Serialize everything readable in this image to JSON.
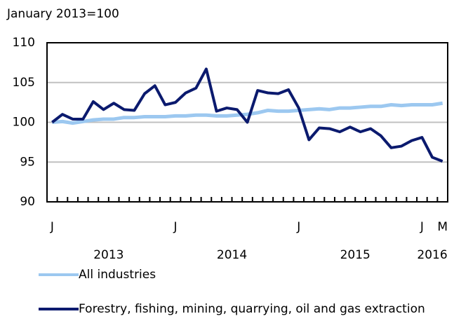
{
  "chart_data": {
    "type": "line",
    "y_label": "January 2013=100",
    "categories": [
      "J",
      null,
      null,
      null,
      null,
      null,
      null,
      null,
      null,
      null,
      null,
      null,
      "J",
      null,
      null,
      null,
      null,
      null,
      null,
      null,
      null,
      null,
      null,
      null,
      "J",
      null,
      null,
      null,
      null,
      null,
      null,
      null,
      null,
      null,
      null,
      null,
      "J",
      null,
      "M"
    ],
    "year_labels": [
      "2013",
      null,
      null,
      null,
      null,
      null,
      null,
      null,
      null,
      null,
      null,
      null,
      "2014",
      null,
      null,
      null,
      null,
      null,
      null,
      null,
      null,
      null,
      null,
      null,
      "2015",
      null,
      null,
      null,
      null,
      null,
      null,
      null,
      null,
      null,
      null,
      null,
      "2016",
      null,
      null
    ],
    "series": [
      {
        "name": "All industries",
        "color": "#9cc8f0",
        "values": [
          100,
          100.1,
          99.9,
          100.1,
          100.3,
          100.4,
          100.4,
          100.6,
          100.6,
          100.7,
          100.7,
          100.7,
          100.8,
          100.8,
          100.9,
          100.9,
          100.8,
          100.8,
          100.9,
          101.0,
          101.2,
          101.5,
          101.4,
          101.4,
          101.5,
          101.6,
          101.7,
          101.6,
          101.8,
          101.8,
          101.9,
          102.0,
          102.0,
          102.2,
          102.1,
          102.2,
          102.2,
          102.2,
          102.4
        ]
      },
      {
        "name": "Forestry, fishing, mining, quarrying, oil and gas extraction",
        "color": "#0b1a6e",
        "values": [
          100,
          101.0,
          100.4,
          100.4,
          102.6,
          101.6,
          102.4,
          101.6,
          101.5,
          103.6,
          104.6,
          102.2,
          102.5,
          103.7,
          104.3,
          106.7,
          101.4,
          101.8,
          101.6,
          100.0,
          104.0,
          103.7,
          103.6,
          104.1,
          101.8,
          97.8,
          99.3,
          99.2,
          98.8,
          99.4,
          98.8,
          99.2,
          98.3,
          96.8,
          97.0,
          97.7,
          98.1,
          95.6,
          95.1
        ]
      }
    ],
    "ylim": [
      90,
      110
    ],
    "yticks": [
      90,
      95,
      100,
      105,
      110
    ],
    "grid": true
  }
}
